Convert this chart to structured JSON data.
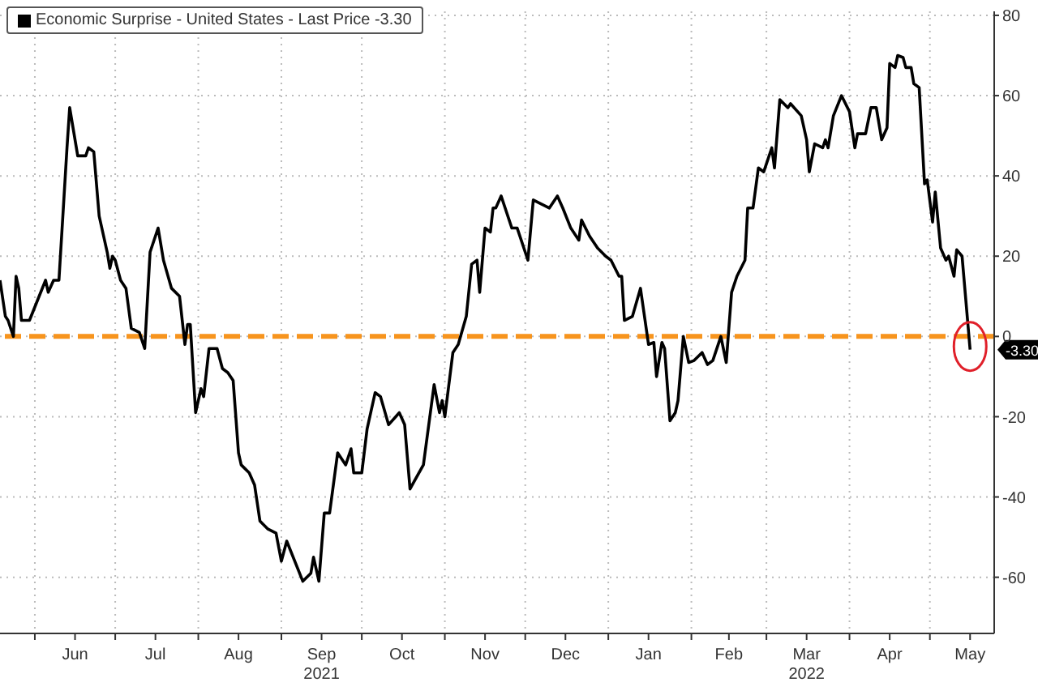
{
  "chart_data": {
    "type": "line",
    "legend": "top left",
    "grid": true,
    "marker": "none",
    "line_style": "solid",
    "xlim": [
      "2021-05-19",
      "2022-05-25"
    ],
    "ylim": [
      -74,
      81
    ],
    "yticks": [
      -60,
      -40,
      -20,
      0,
      20,
      40,
      60,
      80
    ],
    "xticks": [
      {
        "value": "2021-06-01",
        "label": null
      },
      {
        "value": "2021-06-16",
        "label": "Jun"
      },
      {
        "value": "2021-07-01",
        "label": null
      },
      {
        "value": "2021-07-16",
        "label": "Jul"
      },
      {
        "value": "2021-08-01",
        "label": null
      },
      {
        "value": "2021-08-16",
        "label": "Aug"
      },
      {
        "value": "2021-09-01",
        "label": null
      },
      {
        "value": "2021-09-16",
        "label": "Sep\n2021"
      },
      {
        "value": "2021-10-01",
        "label": null
      },
      {
        "value": "2021-10-16",
        "label": "Oct"
      },
      {
        "value": "2021-11-01",
        "label": null
      },
      {
        "value": "2021-11-16",
        "label": "Nov"
      },
      {
        "value": "2021-12-01",
        "label": null
      },
      {
        "value": "2021-12-16",
        "label": "Dec"
      },
      {
        "value": "2022-01-01",
        "label": null
      },
      {
        "value": "2022-01-16",
        "label": "Jan"
      },
      {
        "value": "2022-02-01",
        "label": null
      },
      {
        "value": "2022-02-15",
        "label": "Feb"
      },
      {
        "value": "2022-03-01",
        "label": null
      },
      {
        "value": "2022-03-16",
        "label": "Mar\n2022"
      },
      {
        "value": "2022-04-01",
        "label": null
      },
      {
        "value": "2022-04-16",
        "label": "Apr"
      },
      {
        "value": "2022-05-01",
        "label": null
      },
      {
        "value": "2022-05-16",
        "label": "May"
      }
    ],
    "ref_lines": [
      {
        "axis": "y",
        "value": 0,
        "color": "#f7941d",
        "line_style": "dashed"
      }
    ],
    "annotations": [
      {
        "text": "-3.30",
        "x": "2022-05-16",
        "y": -3.3
      }
    ],
    "series": [
      {
        "name": "Economic Surprise - United States - Last Price -3.30",
        "color": "#000000",
        "x": [
          "2021-05-19",
          "2021-05-21",
          "2021-05-22",
          "2021-05-24",
          "2021-05-25",
          "2021-05-26",
          "2021-05-27",
          "2021-05-30",
          "2021-06-02",
          "2021-06-05",
          "2021-06-06",
          "2021-06-08",
          "2021-06-10",
          "2021-06-13",
          "2021-06-14",
          "2021-06-17",
          "2021-06-20",
          "2021-06-21",
          "2021-06-23",
          "2021-06-25",
          "2021-06-28",
          "2021-06-29",
          "2021-06-30",
          "2021-07-01",
          "2021-07-03",
          "2021-07-05",
          "2021-07-07",
          "2021-07-10",
          "2021-07-12",
          "2021-07-14",
          "2021-07-17",
          "2021-07-19",
          "2021-07-22",
          "2021-07-25",
          "2021-07-27",
          "2021-07-28",
          "2021-07-29",
          "2021-07-31",
          "2021-08-02",
          "2021-08-03",
          "2021-08-05",
          "2021-08-08",
          "2021-08-10",
          "2021-08-12",
          "2021-08-14",
          "2021-08-16",
          "2021-08-17",
          "2021-08-20",
          "2021-08-22",
          "2021-08-24",
          "2021-08-27",
          "2021-08-30",
          "2021-09-01",
          "2021-09-03",
          "2021-09-09",
          "2021-09-12",
          "2021-09-13",
          "2021-09-15",
          "2021-09-17",
          "2021-09-19",
          "2021-09-22",
          "2021-09-25",
          "2021-09-27",
          "2021-09-28",
          "2021-10-01",
          "2021-10-03",
          "2021-10-06",
          "2021-10-08",
          "2021-10-11",
          "2021-10-15",
          "2021-10-17",
          "2021-10-19",
          "2021-10-24",
          "2021-10-28",
          "2021-10-30",
          "2021-10-31",
          "2021-11-01",
          "2021-11-04",
          "2021-11-06",
          "2021-11-09",
          "2021-11-11",
          "2021-11-13",
          "2021-11-14",
          "2021-11-16",
          "2021-11-18",
          "2021-11-19",
          "2021-11-20",
          "2021-11-22",
          "2021-11-26",
          "2021-11-28",
          "2021-12-02",
          "2021-12-04",
          "2021-12-07",
          "2021-12-10",
          "2021-12-13",
          "2021-12-15",
          "2021-12-18",
          "2021-12-21",
          "2021-12-22",
          "2021-12-25",
          "2021-12-28",
          "2021-12-31",
          "2022-01-02",
          "2022-01-05",
          "2022-01-06",
          "2022-01-07",
          "2022-01-10",
          "2022-01-13",
          "2022-01-16",
          "2022-01-18",
          "2022-01-19",
          "2022-01-21",
          "2022-01-22",
          "2022-01-24",
          "2022-01-26",
          "2022-01-27",
          "2022-01-29",
          "2022-01-31",
          "2022-02-02",
          "2022-02-05",
          "2022-02-07",
          "2022-02-09",
          "2022-02-12",
          "2022-02-14",
          "2022-02-16",
          "2022-02-18",
          "2022-02-21",
          "2022-02-22",
          "2022-02-24",
          "2022-02-26",
          "2022-02-28",
          "2022-03-03",
          "2022-03-04",
          "2022-03-06",
          "2022-03-09",
          "2022-03-10",
          "2022-03-14",
          "2022-03-16",
          "2022-03-17",
          "2022-03-19",
          "2022-03-22",
          "2022-03-23",
          "2022-03-24",
          "2022-03-26",
          "2022-03-29",
          "2022-04-01",
          "2022-04-03",
          "2022-04-04",
          "2022-04-07",
          "2022-04-09",
          "2022-04-11",
          "2022-04-13",
          "2022-04-15",
          "2022-04-16",
          "2022-04-18",
          "2022-04-19",
          "2022-04-21",
          "2022-04-22",
          "2022-04-24",
          "2022-04-25",
          "2022-04-27",
          "2022-04-29",
          "2022-04-30",
          "2022-05-02",
          "2022-05-03",
          "2022-05-05",
          "2022-05-07",
          "2022-05-08",
          "2022-05-10",
          "2022-05-11",
          "2022-05-13",
          "2022-05-16"
        ],
        "values": [
          14,
          5,
          4,
          0,
          15,
          12,
          4,
          4,
          9,
          14,
          11,
          14,
          14,
          47,
          57,
          45,
          45,
          47,
          46,
          30,
          21,
          17,
          20,
          19,
          14,
          12,
          2,
          1,
          -3,
          21,
          27,
          19,
          12,
          10,
          -2,
          3,
          3,
          -19,
          -13,
          -15,
          -3,
          -3,
          -8,
          -9,
          -11,
          -29,
          -32,
          -34,
          -37,
          -46,
          -48,
          -49,
          -56,
          -51,
          -61,
          -59,
          -55,
          -61,
          -44,
          -44,
          -29,
          -32,
          -28,
          -34,
          -34,
          -23,
          -14,
          -15,
          -22,
          -19,
          -22,
          -38,
          -32,
          -12,
          -19,
          -16,
          -20,
          -4,
          -2,
          5,
          18,
          19,
          11,
          27,
          26,
          32,
          32,
          35,
          27,
          27,
          19,
          34,
          33,
          32,
          35,
          32,
          27,
          24,
          29,
          25,
          22,
          20,
          19,
          15,
          15,
          4,
          5,
          12,
          -2,
          -1.5,
          -10,
          -1.5,
          -3,
          -21,
          -19,
          -16,
          0,
          -6.5,
          -6,
          -4,
          -7,
          -6,
          0,
          -6.5,
          11,
          15,
          19,
          32,
          32,
          42,
          41,
          47,
          42,
          59,
          57,
          58,
          55,
          49,
          41,
          48,
          47,
          49,
          47,
          55,
          60,
          56,
          47,
          50.5,
          50.5,
          57,
          57,
          49,
          52,
          68,
          67,
          70,
          69.5,
          67,
          67,
          63,
          62,
          38,
          39,
          28.5,
          36,
          22,
          19,
          20,
          15,
          21.6,
          20,
          -3.3
        ]
      }
    ]
  }
}
